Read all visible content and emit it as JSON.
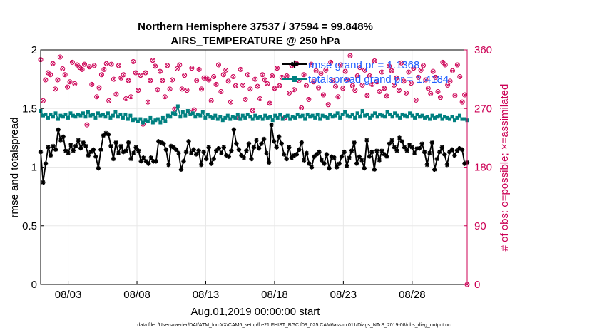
{
  "chart_data": {
    "type": "line",
    "title": "Northern Hemisphere 37537 / 37594 = 99.848%",
    "subtitle": "AIRS_TEMPERATURE @ 250 hPa",
    "xlabel": "Aug.01,2019 00:00:00 start",
    "ylabel": "rmse and totalspread",
    "ylabel_right": "# of obs: o=possible; ×=assimilated",
    "footnote": "data file: /Users/raeder/DAI/ATM_forcXX/CAM6_setup/f.e21.FHIST_BGC.f09_025.CAM6assim.011/Diags_NTrS_2019-08/obs_diag_output.nc",
    "x_range_days": [
      1.0,
      32.0
    ],
    "ylim": [
      0,
      2
    ],
    "ylim_right": [
      0,
      360
    ],
    "x_ticks": [
      {
        "label": "08/03",
        "day": 3
      },
      {
        "label": "08/08",
        "day": 8
      },
      {
        "label": "08/13",
        "day": 13
      },
      {
        "label": "08/18",
        "day": 18
      },
      {
        "label": "08/23",
        "day": 23
      },
      {
        "label": "08/28",
        "day": 28
      }
    ],
    "y_ticks": [
      "0",
      "0.5",
      "1",
      "1.5",
      "2"
    ],
    "y_ticks_right": [
      "0",
      "90",
      "180",
      "270",
      "360"
    ],
    "legend": {
      "placement": "top-right",
      "entries": [
        "rmse grand pr = 1.1368",
        "totalspread grand pr = 1.4184"
      ]
    },
    "colors": {
      "rmse": "#000000",
      "totalspread": "#008080",
      "obs": "#cc0055",
      "legend_text": "#1f5fff",
      "grid": "#e8e8e8"
    },
    "series": [
      {
        "name": "rmse",
        "values": [
          1.13,
          0.87,
          1.03,
          1.17,
          1.1,
          1.18,
          1.15,
          1.32,
          1.23,
          1.26,
          1.14,
          1.12,
          1.19,
          1.14,
          1.18,
          1.23,
          1.16,
          1.21,
          1.18,
          1.1,
          1.13,
          1.15,
          1.09,
          0.99,
          1.15,
          1.27,
          1.29,
          1.28,
          1.18,
          1.07,
          1.21,
          1.12,
          1.18,
          1.13,
          1.14,
          1.21,
          1.07,
          1.12,
          1.17,
          1.14,
          1.05,
          1.08,
          1.05,
          1.03,
          1.08,
          1.05,
          1.05,
          1.22,
          1.21,
          1.2,
          1.15,
          1.02,
          1.18,
          1.17,
          1.15,
          1.12,
          0.98,
          1.05,
          1.13,
          1.22,
          1.12,
          1.15,
          1.11,
          1.14,
          1.02,
          1.13,
          1.07,
          1.17,
          1.03,
          1.07,
          1.14,
          1.16,
          1.12,
          1.17,
          1.1,
          1.09,
          1.14,
          1.32,
          1.2,
          1.15,
          1.1,
          1.08,
          1.14,
          1.2,
          1.07,
          1.17,
          1.23,
          1.16,
          1.2,
          1.24,
          1.12,
          1.04,
          1.36,
          1.22,
          1.17,
          1.26,
          1.2,
          1.11,
          1.07,
          1.17,
          1.08,
          1.1,
          1.11,
          1.15,
          1.21,
          1.06,
          1.12,
          1.03,
          1.0,
          1.09,
          1.11,
          1.13,
          1.06,
          1.03,
          1.11,
          0.99,
          1.09,
          1.08,
          1.0,
          1.03,
          1.09,
          1.13,
          1.01,
          1.08,
          1.14,
          1.21,
          1.03,
          1.09,
          1.06,
          0.99,
          1.23,
          1.09,
          1.13,
          0.98,
          1.14,
          1.06,
          1.14,
          1.11,
          1.09,
          1.2,
          1.23,
          1.17,
          1.14,
          1.25,
          1.22,
          1.17,
          1.14,
          1.19,
          1.17,
          1.12,
          1.16,
          1.16,
          1.2,
          1.13,
          1.02,
          1.12,
          1.21,
          0.98,
          1.07,
          1.13,
          1.17,
          1.11,
          1.02,
          1.13,
          1.15,
          1.1,
          1.14,
          1.16,
          1.15,
          1.03,
          1.04
        ]
      },
      {
        "name": "totalspread",
        "values": [
          1.48,
          1.44,
          1.45,
          1.42,
          1.45,
          1.43,
          1.46,
          1.41,
          1.44,
          1.43,
          1.45,
          1.42,
          1.46,
          1.44,
          1.43,
          1.45,
          1.44,
          1.46,
          1.43,
          1.47,
          1.44,
          1.45,
          1.42,
          1.46,
          1.44,
          1.45,
          1.43,
          1.46,
          1.42,
          1.44,
          1.47,
          1.43,
          1.45,
          1.42,
          1.45,
          1.41,
          1.44,
          1.4,
          1.41,
          1.39,
          1.41,
          1.38,
          1.4,
          1.39,
          1.42,
          1.38,
          1.4,
          1.41,
          1.38,
          1.42,
          1.39,
          1.44,
          1.43,
          1.46,
          1.45,
          1.52,
          1.43,
          1.47,
          1.44,
          1.48,
          1.45,
          1.46,
          1.43,
          1.45,
          1.44,
          1.47,
          1.42,
          1.45,
          1.43,
          1.42,
          1.44,
          1.41,
          1.43,
          1.4,
          1.42,
          1.44,
          1.41,
          1.43,
          1.42,
          1.45,
          1.41,
          1.44,
          1.42,
          1.45,
          1.43,
          1.41,
          1.44,
          1.42,
          1.43,
          1.41,
          1.44,
          1.42,
          1.43,
          1.4,
          1.44,
          1.42,
          1.45,
          1.41,
          1.43,
          1.44,
          1.41,
          1.43,
          1.42,
          1.45,
          1.43,
          1.44,
          1.41,
          1.45,
          1.43,
          1.44,
          1.42,
          1.45,
          1.41,
          1.44,
          1.43,
          1.42,
          1.45,
          1.43,
          1.44,
          1.46,
          1.42,
          1.45,
          1.47,
          1.44,
          1.43,
          1.45,
          1.42,
          1.46,
          1.43,
          1.48,
          1.44,
          1.45,
          1.42,
          1.44,
          1.46,
          1.43,
          1.45,
          1.44,
          1.43,
          1.47,
          1.45,
          1.43,
          1.46,
          1.44,
          1.42,
          1.45,
          1.44,
          1.43,
          1.46,
          1.44,
          1.42,
          1.45,
          1.43,
          1.44,
          1.42,
          1.43,
          1.41,
          1.44,
          1.42,
          1.43,
          1.44,
          1.41,
          1.43,
          1.42,
          1.41,
          1.43,
          1.4,
          1.42,
          1.44,
          1.41,
          1.41,
          1.4
        ]
      },
      {
        "name": "nobs",
        "values": [
          345,
          282,
          314,
          325,
          322,
          339,
          300,
          314,
          349,
          331,
          322,
          303,
          311,
          341,
          308,
          337,
          333,
          330,
          338,
          245,
          334,
          307,
          336,
          288,
          302,
          322,
          330,
          339,
          282,
          338,
          315,
          292,
          336,
          317,
          322,
          285,
          313,
          288,
          342,
          325,
          298,
          321,
          246,
          325,
          280,
          313,
          344,
          335,
          299,
          327,
          313,
          288,
          336,
          300,
          314,
          269,
          331,
          337,
          300,
          321,
          298,
          265,
          332,
          268,
          313,
          330,
          300,
          317,
          317,
          314,
          282,
          319,
          307,
          337,
          296,
          322,
          329,
          312,
          280,
          319,
          305,
          256,
          330,
          306,
          284,
          322,
          300,
          267,
          315,
          304,
          285,
          322,
          314,
          308,
          278,
          320,
          301,
          332,
          305,
          318,
          255,
          320,
          294,
          336,
          299,
          339,
          313,
          271,
          322,
          305,
          284,
          338,
          311,
          328,
          302,
          324,
          291,
          329,
          276,
          341,
          313,
          304,
          288,
          337,
          301,
          327,
          314,
          351,
          305,
          298,
          320,
          333,
          306,
          329,
          290,
          320,
          307,
          343,
          311,
          296,
          326,
          301,
          289,
          335,
          328,
          306,
          317,
          298,
          340,
          312,
          294,
          326,
          309,
          332,
          283,
          318,
          329,
          336,
          314,
          301,
          293,
          327,
          318,
          296,
          287,
          341,
          337,
          306,
          312,
          328,
          290,
          337,
          319,
          280,
          291,
          0
        ]
      }
    ]
  }
}
